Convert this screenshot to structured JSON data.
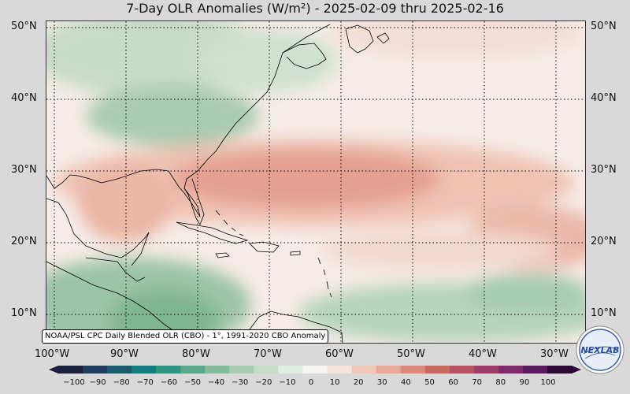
{
  "title": "7-Day OLR Anomalies (W/m²) - 2025-02-09 thru 2025-02-16",
  "map": {
    "lat_labels": [
      "50°N",
      "40°N",
      "30°N",
      "20°N",
      "10°N"
    ],
    "lon_labels": [
      "100°W",
      "90°W",
      "80°W",
      "70°W",
      "60°W",
      "50°W",
      "40°W",
      "30°W"
    ],
    "source": "NOAA/PSL CPC Daily Blended OLR (CBO) - 1°, 1991-2020 CBO Anomaly",
    "logo_text": "NEXLAB"
  },
  "colorbar": {
    "ticks": [
      "−100",
      "−90",
      "−80",
      "−70",
      "−60",
      "−50",
      "−40",
      "−30",
      "−20",
      "−10",
      "0",
      "10",
      "20",
      "30",
      "40",
      "50",
      "60",
      "70",
      "80",
      "90",
      "100"
    ],
    "colors": [
      "#1a1f3c",
      "#1f3d5c",
      "#1c5a6e",
      "#137d7e",
      "#2f9582",
      "#5ba88a",
      "#84bb99",
      "#a7ccaf",
      "#c6ddc9",
      "#e1ece2",
      "#f7f5f3",
      "#f5e2db",
      "#efc8b9",
      "#e6a897",
      "#d98a79",
      "#c76a62",
      "#b55363",
      "#9c3d6a",
      "#7f2a6c",
      "#5a1b5e",
      "#2d0a33"
    ]
  },
  "colors": {
    "land_line": "#000000",
    "grid_line": "#000000",
    "background": "#d9d9d9"
  }
}
